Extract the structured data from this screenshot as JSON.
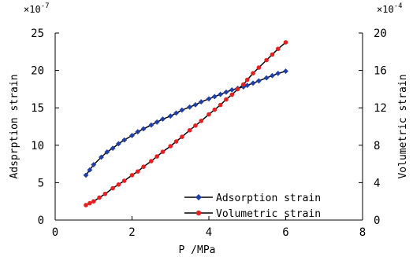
{
  "chart_data": {
    "type": "line",
    "xlabel": "P /MPa",
    "ylabel_left": "Adsprption strain",
    "ylabel_right": "Volumetric strain",
    "multiplier_left": "×10",
    "multiplier_left_exp": "-7",
    "multiplier_right": "×10",
    "multiplier_right_exp": "-4",
    "xlim": [
      0,
      8
    ],
    "xticks": [
      "0",
      "2",
      "4",
      "6",
      "8"
    ],
    "ylim_left": [
      0,
      25
    ],
    "yticks_left": [
      "0",
      "5",
      "10",
      "15",
      "20",
      "25"
    ],
    "ylim_right": [
      0,
      20
    ],
    "yticks_right": [
      "0",
      "4",
      "8",
      "12",
      "16",
      "20"
    ],
    "legend_position": "lower-right",
    "series": [
      {
        "name": "Adsorption strain",
        "axis": "left",
        "color": "#1f3ea8",
        "marker": "diamond",
        "x": [
          0.8,
          0.9,
          1.0,
          1.2,
          1.35,
          1.5,
          1.65,
          1.8,
          2.0,
          2.15,
          2.3,
          2.5,
          2.65,
          2.8,
          3.0,
          3.15,
          3.3,
          3.5,
          3.65,
          3.8,
          4.0,
          4.15,
          4.3,
          4.45,
          4.6,
          4.75,
          4.9,
          5.0,
          5.15,
          5.3,
          5.5,
          5.65,
          5.8,
          6.0
        ],
        "y": [
          6.0,
          6.7,
          7.4,
          8.4,
          9.1,
          9.6,
          10.2,
          10.7,
          11.3,
          11.8,
          12.2,
          12.7,
          13.1,
          13.5,
          13.9,
          14.3,
          14.7,
          15.1,
          15.4,
          15.8,
          16.2,
          16.5,
          16.8,
          17.1,
          17.4,
          17.6,
          17.8,
          18.0,
          18.3,
          18.6,
          19.0,
          19.3,
          19.6,
          19.9
        ]
      },
      {
        "name": "Volumetric strain",
        "axis": "right",
        "color": "#e62020",
        "marker": "circle",
        "x": [
          0.8,
          0.9,
          1.0,
          1.15,
          1.3,
          1.5,
          1.65,
          1.8,
          2.0,
          2.15,
          2.3,
          2.5,
          2.65,
          2.8,
          3.0,
          3.15,
          3.3,
          3.5,
          3.65,
          3.8,
          4.0,
          4.15,
          4.3,
          4.45,
          4.6,
          4.75,
          4.9,
          5.0,
          5.15,
          5.3,
          5.5,
          5.65,
          5.8,
          6.0
        ],
        "y": [
          1.6,
          1.8,
          2.0,
          2.4,
          2.8,
          3.4,
          3.8,
          4.2,
          4.8,
          5.2,
          5.7,
          6.3,
          6.8,
          7.3,
          7.9,
          8.4,
          8.9,
          9.6,
          10.1,
          10.6,
          11.3,
          11.8,
          12.3,
          12.9,
          13.4,
          14.0,
          14.5,
          15.0,
          15.7,
          16.3,
          17.1,
          17.7,
          18.3,
          19.0
        ]
      }
    ]
  }
}
